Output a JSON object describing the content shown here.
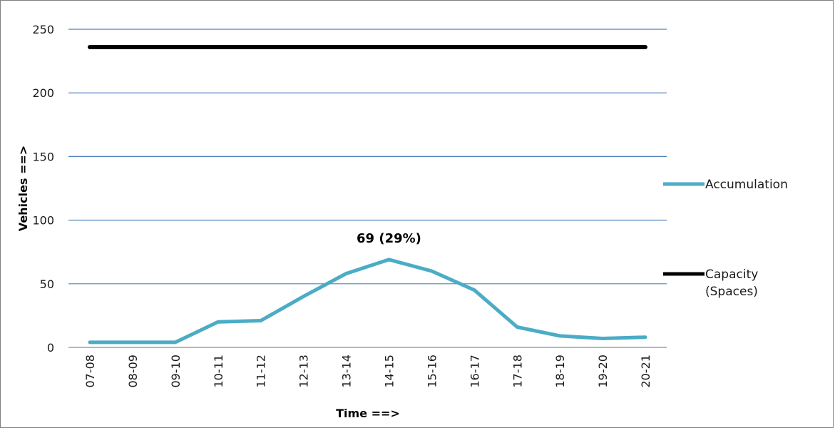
{
  "chart_data": {
    "type": "line",
    "categories": [
      "07-08",
      "08-09",
      "09-10",
      "10-11",
      "11-12",
      "12-13",
      "13-14",
      "14-15",
      "15-16",
      "16-17",
      "17-18",
      "18-19",
      "19-20",
      "20-21"
    ],
    "series": [
      {
        "name": "Accumulation",
        "color": "#4BACC6",
        "values": [
          4,
          4,
          4,
          20,
          21,
          40,
          58,
          69,
          60,
          45,
          16,
          9,
          7,
          8
        ]
      },
      {
        "name": "Capacity (Spaces)",
        "color": "#000000",
        "values": [
          236,
          236,
          236,
          236,
          236,
          236,
          236,
          236,
          236,
          236,
          236,
          236,
          236,
          236
        ]
      }
    ],
    "xlabel": "Time  ==>",
    "ylabel": "Vehicles ==>",
    "ylim": [
      0,
      250
    ],
    "yticks": [
      0,
      50,
      100,
      150,
      200,
      250
    ],
    "grid": true,
    "gridColor": "#4F81BD",
    "legend": {
      "position": "right",
      "entries": [
        {
          "lines": [
            "Accumulation"
          ],
          "color": "#4BACC6"
        },
        {
          "lines": [
            "Capacity",
            "(Spaces)"
          ],
          "color": "#000000"
        }
      ]
    },
    "annotation": {
      "text": "69 (29%)",
      "category": "14-15",
      "value": 69
    }
  }
}
